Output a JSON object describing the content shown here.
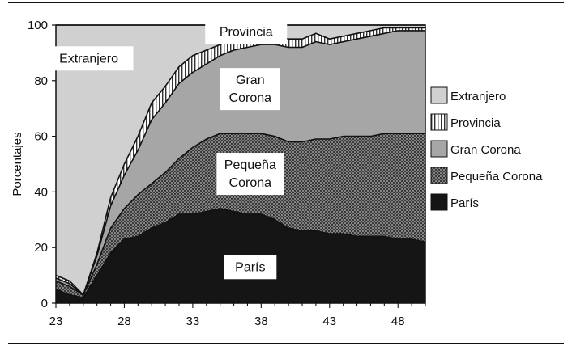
{
  "chart_data": {
    "type": "area",
    "stacked": true,
    "ylabel": "Porcentajes",
    "xlim": [
      23,
      50
    ],
    "ylim": [
      0,
      100
    ],
    "xticks": [
      23,
      28,
      33,
      38,
      43,
      48
    ],
    "yticks": [
      0,
      20,
      40,
      60,
      80,
      100
    ],
    "grid": false,
    "legend_position": "right",
    "x": [
      23,
      24,
      25,
      26,
      27,
      28,
      29,
      30,
      31,
      32,
      33,
      34,
      35,
      36,
      37,
      38,
      39,
      40,
      41,
      42,
      43,
      44,
      45,
      46,
      47,
      48,
      49,
      50
    ],
    "series": [
      {
        "name": "París",
        "pattern": "solid-black",
        "values": [
          5,
          3,
          2,
          10,
          18,
          23,
          24,
          27,
          29,
          32,
          32,
          33,
          34,
          33,
          32,
          32,
          30,
          27,
          26,
          26,
          25,
          25,
          24,
          24,
          24,
          23,
          23,
          22
        ]
      },
      {
        "name": "Pequeña Corona",
        "pattern": "crosshatch",
        "values": [
          3,
          3,
          1,
          4,
          9,
          11,
          15,
          16,
          18,
          20,
          24,
          26,
          27,
          28,
          29,
          29,
          30,
          31,
          32,
          33,
          34,
          35,
          36,
          36,
          37,
          38,
          38,
          39
        ]
      },
      {
        "name": "Gran Corona",
        "pattern": "gray",
        "values": [
          1,
          1,
          0,
          3,
          8,
          12,
          16,
          23,
          25,
          27,
          27,
          27,
          28,
          30,
          31,
          32,
          33,
          34,
          34,
          35,
          34,
          34,
          35,
          36,
          36,
          37,
          37,
          37
        ]
      },
      {
        "name": "Provincia",
        "pattern": "vertical-stripes",
        "values": [
          1,
          1,
          0,
          1,
          3,
          4,
          5,
          6,
          6,
          6,
          6,
          5,
          4,
          4,
          4,
          3,
          3,
          3,
          3,
          3,
          2,
          2,
          2,
          2,
          2,
          1,
          1,
          1
        ]
      },
      {
        "name": "Extranjero",
        "pattern": "light-gray",
        "values": [
          90,
          92,
          97,
          82,
          62,
          50,
          40,
          28,
          22,
          15,
          11,
          9,
          7,
          5,
          4,
          4,
          4,
          5,
          5,
          3,
          5,
          4,
          3,
          2,
          1,
          1,
          1,
          1
        ]
      }
    ],
    "annotations": [
      {
        "series": "Extranjero",
        "lines": [
          "Extranjero"
        ],
        "x": 25.4,
        "y": 88
      },
      {
        "series": "Provincia",
        "lines": [
          "Provincia"
        ],
        "x": 36.9,
        "y": 97.5
      },
      {
        "series": "Gran Corona",
        "lines": [
          "Gran",
          "Corona"
        ],
        "x": 37.2,
        "y": 77
      },
      {
        "series": "Pequeña Corona",
        "lines": [
          "Pequeña",
          "Corona"
        ],
        "x": 37.2,
        "y": 46.5
      },
      {
        "series": "París",
        "lines": [
          "París"
        ],
        "x": 37.2,
        "y": 13
      }
    ],
    "legend": [
      "Extranjero",
      "Provincia",
      "Gran Corona",
      "Pequeña Corona",
      "París"
    ]
  }
}
